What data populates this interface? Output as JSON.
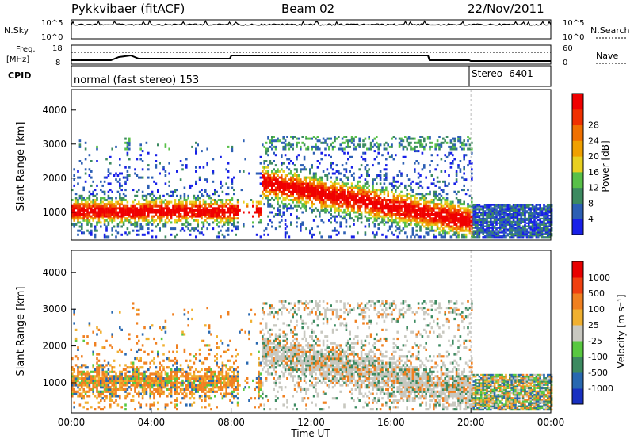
{
  "header": {
    "radar": "Pykkvibaer (fitACF)",
    "beam": "Beam 02",
    "date": "22/Nov/2011"
  },
  "sky_panel": {
    "left_label": "N.Sky",
    "right_label": "N.Search",
    "tick_top": "10^5",
    "tick_bottom": "10^0",
    "right_tick_top": "10^5",
    "right_tick_bottom": "10^0"
  },
  "freq_panel": {
    "label_line1": "Freq.",
    "label_line2": "[MHz]",
    "ticks": [
      "18",
      "8"
    ],
    "right_label": "Nave",
    "right_ticks": [
      "60",
      "0"
    ]
  },
  "cpid_panel": {
    "label": "CPID",
    "mode1": "normal (fast stereo) 153",
    "mode2": "Stereo -6401"
  },
  "chart_data": [
    {
      "type": "heatmap",
      "name": "Power",
      "ylabel": "Slant Range [km]",
      "xlabel": "Time UT",
      "yticks": [
        "1000",
        "2000",
        "3000",
        "4000"
      ],
      "ylim": [
        180,
        4600
      ],
      "xticks": [
        "00:00",
        "04:00",
        "08:00",
        "12:00",
        "16:00",
        "20:00",
        "00:00"
      ],
      "colorbar": {
        "label": "Power [dB]",
        "ticks": [
          "4",
          "8",
          "12",
          "16",
          "20",
          "24",
          "28"
        ],
        "colors": [
          "#1820e8",
          "#2c5fb4",
          "#3c8a60",
          "#58c048",
          "#e8d020",
          "#f0a000",
          "#f07000",
          "#f03000",
          "#f00000"
        ]
      }
    },
    {
      "type": "heatmap",
      "name": "Velocity",
      "ylabel": "Slant Range [km]",
      "xlabel": "Time UT",
      "yticks": [
        "1000",
        "2000",
        "3000",
        "4000"
      ],
      "ylim": [
        180,
        4600
      ],
      "xticks": [
        "00:00",
        "04:00",
        "08:00",
        "12:00",
        "16:00",
        "20:00",
        "00:00"
      ],
      "colorbar": {
        "label": "Velocity [m s⁻¹]",
        "ticks": [
          "1000",
          "500",
          "100",
          "25",
          "-25",
          "-100",
          "-500",
          "-1000"
        ],
        "colors": [
          "#1830c0",
          "#2868b0",
          "#3c8a60",
          "#58c840",
          "#c8c8c0",
          "#f0b030",
          "#f08020",
          "#f04010",
          "#e80000"
        ]
      }
    }
  ]
}
